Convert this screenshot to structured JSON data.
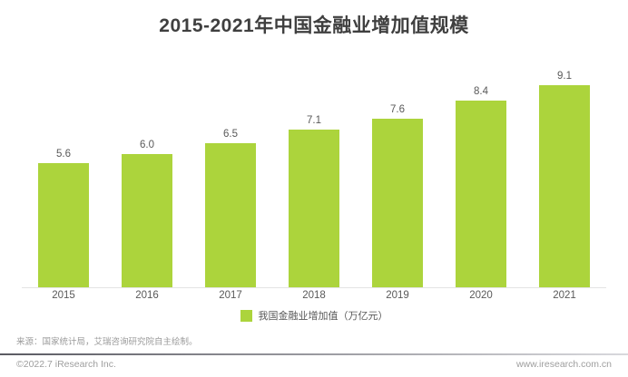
{
  "title": "2015-2021年中国金融业增加值规模",
  "legend": {
    "label": "我国金融业增加值（万亿元）"
  },
  "source_note": "来源：国家统计局，艾瑞咨询研究院自主绘制。",
  "footer": {
    "left": "©2022.7 iResearch Inc.",
    "right": "www.iresearch.com.cn"
  },
  "colors": {
    "bar": "#acd43c",
    "title_text": "#3f3f3f",
    "label_text": "#595959",
    "axis_line": "#e4e4e4",
    "footer_text": "#9e9e9e"
  },
  "chart_data": {
    "type": "bar",
    "title": "2015-2021年中国金融业增加值规模",
    "categories": [
      "2015",
      "2016",
      "2017",
      "2018",
      "2019",
      "2020",
      "2021"
    ],
    "series": [
      {
        "name": "我国金融业增加值（万亿元）",
        "values": [
          5.6,
          6.0,
          6.5,
          7.1,
          7.6,
          8.4,
          9.1
        ]
      }
    ],
    "value_label_decimals": 1,
    "xlabel": "",
    "ylabel": "万亿元",
    "ylim": [
      0,
      9.8
    ],
    "grid": false,
    "legend_position": "bottom",
    "data_labels": true
  }
}
